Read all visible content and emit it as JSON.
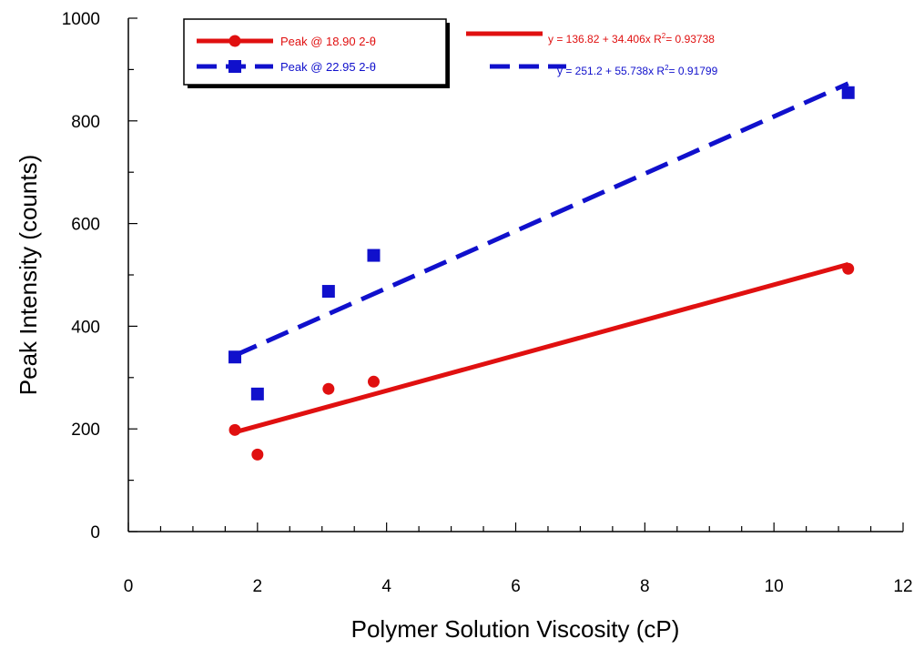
{
  "chart_data": {
    "type": "scatter",
    "xlabel": "Polymer Solution Viscosity (cP)",
    "ylabel": "Peak Intensity (counts)",
    "xlim": [
      0,
      12
    ],
    "ylim": [
      0,
      1000
    ],
    "x_ticks": [
      "0",
      "2",
      "4",
      "6",
      "8",
      "10",
      "12"
    ],
    "y_ticks": [
      "0",
      "200",
      "400",
      "600",
      "800",
      "1000"
    ],
    "grid": false,
    "legend_position": "top-left",
    "series": [
      {
        "name": "Peak @ 18.90 2-θ",
        "color": "#e01010",
        "marker": "circle",
        "line_style": "solid",
        "x": [
          1.65,
          2.0,
          3.1,
          3.8,
          11.15
        ],
        "y": [
          198,
          150,
          278,
          292,
          512
        ],
        "fit": {
          "intercept": 136.82,
          "slope": 34.406,
          "x_range": [
            1.65,
            11.15
          ]
        },
        "equation": "y = 136.82 + 34.406x",
        "r2_label": "R",
        "r2_sup": "2",
        "r2_value": "= 0.93738"
      },
      {
        "name": "Peak @ 22.95 2-θ",
        "color": "#1010cc",
        "marker": "square",
        "line_style": "dashed",
        "x": [
          1.65,
          2.0,
          3.1,
          3.8,
          11.15
        ],
        "y": [
          340,
          268,
          468,
          538,
          855
        ],
        "fit": {
          "intercept": 251.2,
          "slope": 55.738,
          "x_range": [
            1.65,
            11.15
          ]
        },
        "equation": "y = 251.2 + 55.738x",
        "r2_label": "R",
        "r2_sup": "2",
        "r2_value": "= 0.91799"
      }
    ]
  }
}
